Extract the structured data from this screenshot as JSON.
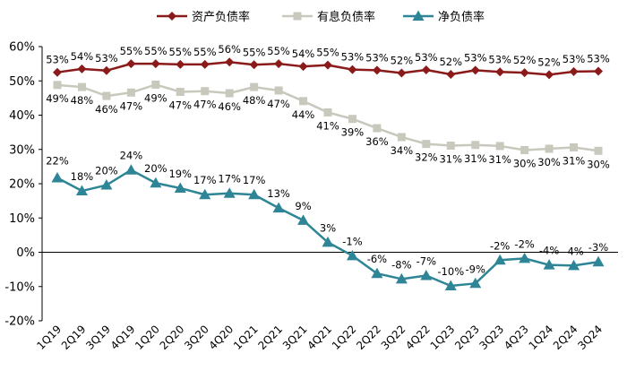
{
  "chart_data": {
    "type": "line",
    "title": "",
    "xlabel": "",
    "ylabel": "",
    "ylim": [
      -20,
      60
    ],
    "yticks": [
      -20,
      -10,
      0,
      10,
      20,
      30,
      40,
      50,
      60
    ],
    "ytick_labels": [
      "-20%",
      "-10%",
      "0%",
      "10%",
      "20%",
      "30%",
      "40%",
      "50%",
      "60%"
    ],
    "value_suffix": "%",
    "legend_position": "top",
    "categories": [
      "1Q19",
      "2Q19",
      "3Q19",
      "4Q19",
      "1Q20",
      "2Q20",
      "3Q20",
      "4Q20",
      "1Q21",
      "2Q21",
      "3Q21",
      "4Q21",
      "1Q22",
      "2Q22",
      "3Q22",
      "4Q22",
      "1Q23",
      "2Q23",
      "3Q23",
      "4Q23",
      "1Q24",
      "2Q24",
      "3Q24"
    ],
    "series": [
      {
        "name": "资产负债率",
        "color": "#8b1a1a",
        "marker": "diamond",
        "values": [
          52.5,
          53.5,
          53,
          55,
          55,
          54.8,
          54.8,
          55.5,
          54.7,
          55,
          54.2,
          54.6,
          53.3,
          53.1,
          52.3,
          53.2,
          51.9,
          53.1,
          52.6,
          52.4,
          51.8,
          52.7,
          52.8
        ],
        "labels": [
          53,
          54,
          53,
          55,
          55,
          55,
          55,
          56,
          55,
          55,
          54,
          55,
          53,
          53,
          52,
          53,
          52,
          53,
          53,
          52,
          52,
          53,
          53
        ]
      },
      {
        "name": "有息负债率",
        "color": "#c8c8bc",
        "marker": "square",
        "values": [
          48.8,
          48.2,
          45.6,
          46.6,
          48.9,
          46.8,
          47,
          46.4,
          48.2,
          47.2,
          44.1,
          40.8,
          38.9,
          36.2,
          33.6,
          31.6,
          31.1,
          31.3,
          31,
          29.8,
          30.2,
          30.6,
          29.6
        ],
        "labels": [
          49,
          48,
          46,
          47,
          49,
          47,
          47,
          46,
          48,
          47,
          44,
          41,
          39,
          36,
          34,
          32,
          31,
          31,
          31,
          30,
          30,
          31,
          30
        ]
      },
      {
        "name": "净负债率",
        "color": "#2e8596",
        "marker": "triangle",
        "values": [
          21.7,
          17.9,
          19.6,
          24,
          20.2,
          18.7,
          16.8,
          17.2,
          16.8,
          12.9,
          9.3,
          2.9,
          -1,
          -6.2,
          -7.8,
          -6.8,
          -9.8,
          -9.1,
          -2.3,
          -1.8,
          -3.7,
          -3.9,
          -2.8
        ],
        "labels": [
          22,
          18,
          20,
          24,
          20,
          19,
          17,
          17,
          17,
          13,
          9,
          3,
          -1,
          -6,
          -8,
          -7,
          -10,
          -9,
          -2,
          -2,
          -4,
          -4,
          -3
        ]
      }
    ]
  }
}
